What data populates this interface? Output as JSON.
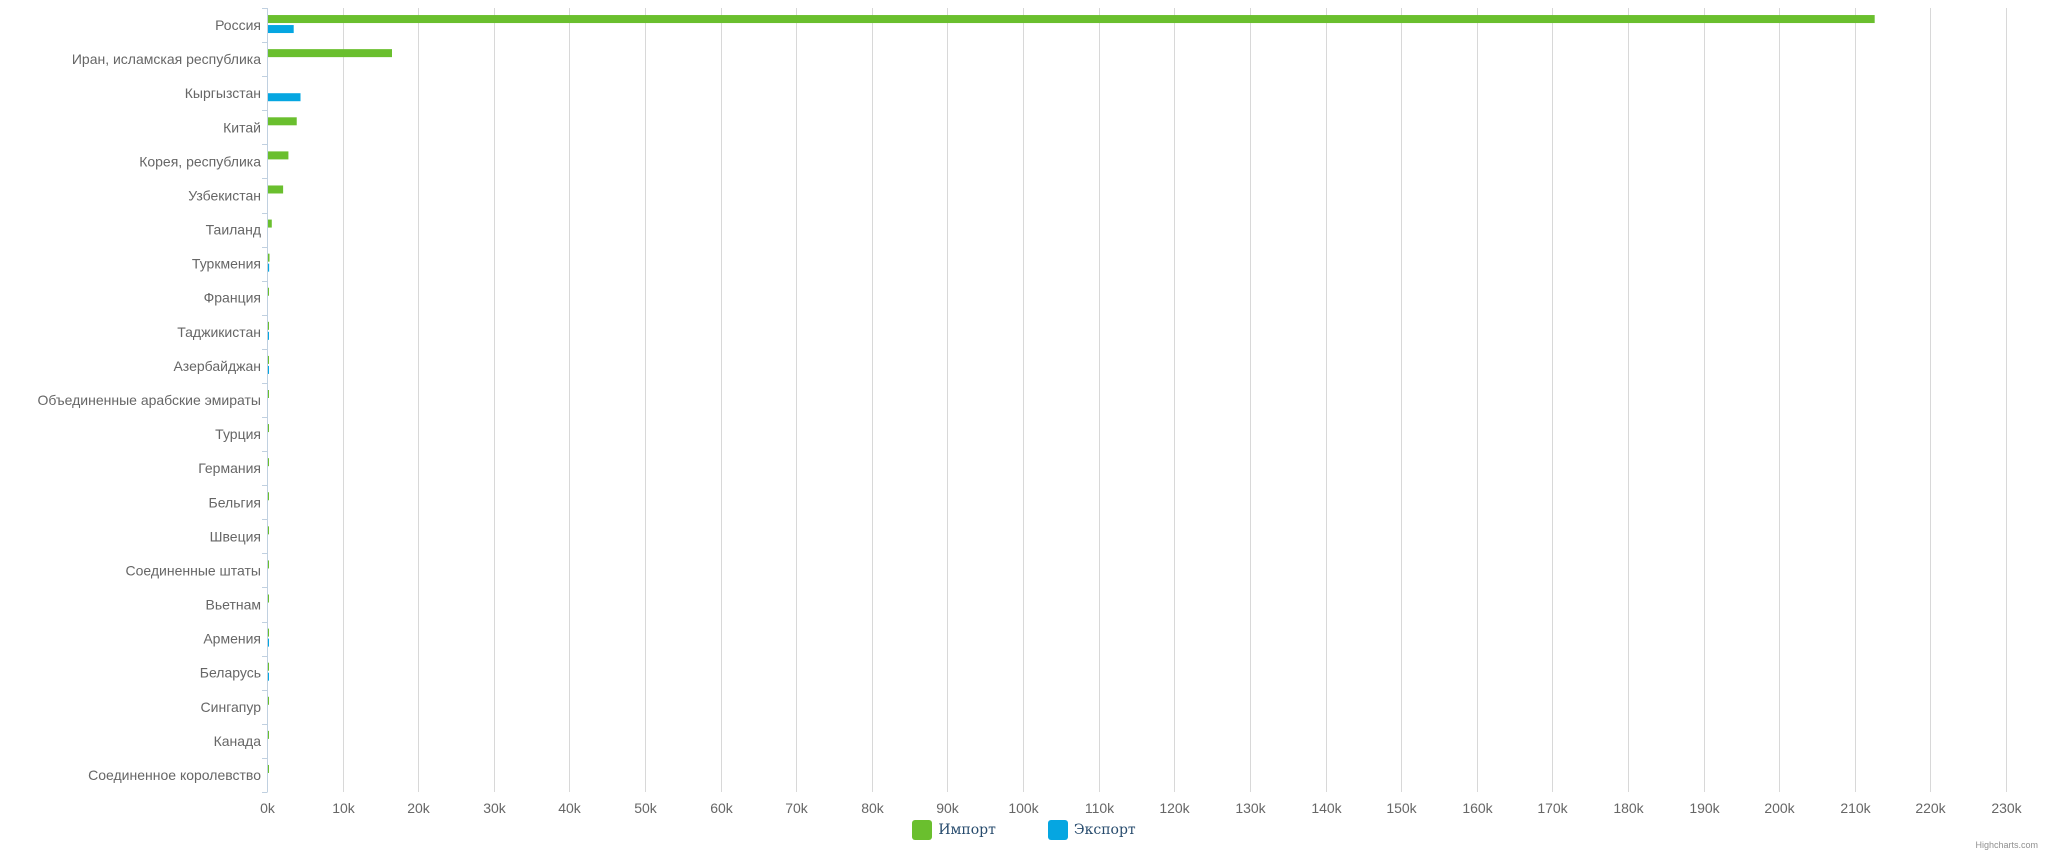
{
  "chart_data": {
    "type": "bar",
    "orientation": "horizontal",
    "categories": [
      "Россия",
      "Иран, исламская республика",
      "Кыргызстан",
      "Китай",
      "Корея, республика",
      "Узбекистан",
      "Таиланд",
      "Туркмения",
      "Франция",
      "Таджикистан",
      "Азербайджан",
      "Объединенные арабские эмираты",
      "Турция",
      "Германия",
      "Бельгия",
      "Швеция",
      "Соединенные штаты",
      "Вьетнам",
      "Армения",
      "Беларусь",
      "Сингапур",
      "Канада",
      "Соединенное королевство"
    ],
    "series": [
      {
        "name": "Импорт",
        "color": "#6abf2e",
        "values": [
          212500,
          16400,
          0,
          3800,
          2700,
          2000,
          500,
          200,
          80,
          60,
          50,
          40,
          30,
          25,
          20,
          15,
          12,
          10,
          8,
          6,
          5,
          4,
          3
        ]
      },
      {
        "name": "Экспорт",
        "color": "#05a6e1",
        "values": [
          3400,
          0,
          4300,
          0,
          0,
          0,
          0,
          150,
          0,
          20,
          10,
          0,
          0,
          0,
          0,
          0,
          0,
          0,
          5,
          4,
          0,
          0,
          0
        ]
      }
    ],
    "x_ticks": [
      "0k",
      "10k",
      "20k",
      "30k",
      "40k",
      "50k",
      "60k",
      "70k",
      "80k",
      "90k",
      "100k",
      "110k",
      "120k",
      "130k",
      "140k",
      "150k",
      "160k",
      "170k",
      "180k",
      "190k",
      "200k",
      "210k",
      "220k",
      "230k"
    ],
    "xlim": [
      0,
      230000
    ],
    "grid": true,
    "legend_position": "bottom-center"
  },
  "credits": "Highcharts.com"
}
